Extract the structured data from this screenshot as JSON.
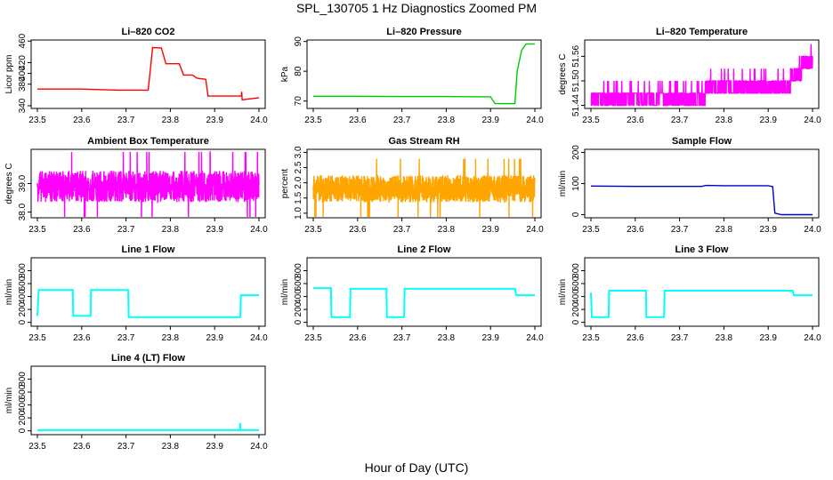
{
  "figure": {
    "title": "SPL_130705  1 Hz Diagnostics Zoomed PM",
    "xlabel": "Hour of Day (UTC)"
  },
  "chart_data": [
    {
      "type": "line",
      "title": "Li–820 CO2",
      "ylabel": "Licor ppm",
      "color": "#ff0000",
      "xlim": [
        23.5,
        24.0
      ],
      "xticks": [
        23.5,
        23.6,
        23.7,
        23.8,
        23.9,
        24.0
      ],
      "xtick_labels": [
        "23.5",
        "23.6",
        "23.7",
        "23.8",
        "23.9",
        "24.0"
      ],
      "ylim": [
        335,
        462
      ],
      "yticks": [
        340,
        380,
        400,
        420,
        460
      ],
      "ytick_labels": [
        "340",
        "380",
        "400",
        "420",
        "460"
      ],
      "series": [
        {
          "x": [
            23.5,
            23.6,
            23.68,
            23.75,
            23.76,
            23.78,
            23.79,
            23.82,
            23.83,
            23.85,
            23.86,
            23.88,
            23.885,
            23.96,
            23.961,
            23.962,
            24.0
          ],
          "y": [
            371,
            371,
            369,
            369,
            448,
            447,
            418,
            418,
            397,
            397,
            391,
            389,
            358,
            358,
            366,
            351,
            355
          ]
        }
      ]
    },
    {
      "type": "line",
      "title": "Li–820 Pressure",
      "ylabel": "kPa",
      "color": "#00cc00",
      "xlim": [
        23.5,
        24.0
      ],
      "xticks": [
        23.5,
        23.6,
        23.7,
        23.8,
        23.9,
        24.0
      ],
      "xtick_labels": [
        "23.5",
        "23.6",
        "23.7",
        "23.8",
        "23.9",
        "24.0"
      ],
      "ylim": [
        67.5,
        90.5
      ],
      "yticks": [
        70,
        80,
        90
      ],
      "ytick_labels": [
        "70",
        "80",
        "90"
      ],
      "series": [
        {
          "x": [
            23.5,
            23.6,
            23.7,
            23.8,
            23.9,
            23.91,
            23.955,
            23.96,
            23.97,
            23.98,
            24.0
          ],
          "y": [
            71.6,
            71.6,
            71.5,
            71.5,
            71.4,
            69.1,
            69.1,
            80,
            87,
            89.2,
            89.2
          ]
        }
      ]
    },
    {
      "type": "line",
      "title": "Li–820 Temperature",
      "ylabel": "degrees C",
      "color": "#ff00ff",
      "xlim": [
        23.5,
        24.0
      ],
      "xticks": [
        23.5,
        23.6,
        23.7,
        23.8,
        23.9,
        24.0
      ],
      "xtick_labels": [
        "23.5",
        "23.6",
        "23.7",
        "23.8",
        "23.9",
        "24.0"
      ],
      "ylim": [
        51.4325,
        51.6
      ],
      "yticks": [
        51.44,
        51.5,
        51.56
      ],
      "ytick_labels": [
        "51.44",
        "51.50",
        "51.56"
      ],
      "series": [
        {
          "x": [
            23.5,
            23.6,
            23.7,
            23.76,
            23.8,
            23.85,
            23.9,
            23.95,
            23.97,
            23.98,
            24.0
          ],
          "y": [
            51.44,
            51.44,
            51.44,
            51.44,
            51.47,
            51.47,
            51.5,
            51.5,
            51.53,
            51.56,
            51.56
          ]
        }
      ]
    },
    {
      "type": "line",
      "title": "Ambient Box Temperature",
      "ylabel": "degrees C",
      "color": "#ff00ff",
      "xlim": [
        23.5,
        24.0
      ],
      "xticks": [
        23.5,
        23.6,
        23.7,
        23.8,
        23.9,
        24.0
      ],
      "xtick_labels": [
        "23.5",
        "23.6",
        "23.7",
        "23.8",
        "23.9",
        "24.0"
      ],
      "ylim": [
        37.8,
        40.2
      ],
      "yticks": [
        38.0,
        39.0
      ],
      "ytick_labels": [
        "38.0",
        "39.0"
      ],
      "series": [
        {
          "x": [
            23.5,
            23.6,
            23.7,
            23.8,
            23.9,
            24.0
          ],
          "y": [
            38.9,
            38.9,
            38.9,
            38.9,
            38.9,
            38.9
          ]
        }
      ]
    },
    {
      "type": "line",
      "title": "Gas Stream RH",
      "ylabel": "percent",
      "color": "#ffa500",
      "xlim": [
        23.5,
        24.0
      ],
      "xticks": [
        23.5,
        23.6,
        23.7,
        23.8,
        23.9,
        24.0
      ],
      "xtick_labels": [
        "23.5",
        "23.6",
        "23.7",
        "23.8",
        "23.9",
        "24.0"
      ],
      "ylim": [
        0.85,
        3.1
      ],
      "yticks": [
        1.0,
        1.5,
        2.0,
        2.5,
        3.0
      ],
      "ytick_labels": [
        "1.0",
        "1.5",
        "2.0",
        "2.5",
        "3.0"
      ],
      "series": [
        {
          "x": [
            23.5,
            23.6,
            23.7,
            23.8,
            23.9,
            24.0
          ],
          "y": [
            1.8,
            1.8,
            1.8,
            1.8,
            1.8,
            1.8
          ]
        }
      ]
    },
    {
      "type": "line",
      "title": "Sample Flow",
      "ylabel": "ml/min",
      "color": "#0000cc",
      "xlim": [
        23.5,
        24.0
      ],
      "xticks": [
        23.5,
        23.6,
        23.7,
        23.8,
        23.9,
        24.0
      ],
      "xtick_labels": [
        "23.5",
        "23.6",
        "23.7",
        "23.8",
        "23.9",
        "24.0"
      ],
      "ylim": [
        -10,
        210
      ],
      "yticks": [
        0,
        100,
        200
      ],
      "ytick_labels": [
        "0",
        "100",
        "200"
      ],
      "series": [
        {
          "x": [
            23.5,
            23.6,
            23.7,
            23.75,
            23.76,
            23.8,
            23.9,
            23.91,
            23.915,
            23.93,
            24.0
          ],
          "y": [
            92,
            91,
            91,
            91,
            94,
            93,
            93,
            90,
            5,
            0,
            0
          ]
        }
      ]
    },
    {
      "type": "line",
      "title": "Line 1 Flow",
      "ylabel": "ml/min",
      "color": "#00ffff",
      "xlim": [
        23.5,
        24.0
      ],
      "xticks": [
        23.5,
        23.6,
        23.7,
        23.8,
        23.9,
        24.0
      ],
      "xtick_labels": [
        "23.5",
        "23.6",
        "23.7",
        "23.8",
        "23.9",
        "24.0"
      ],
      "ylim": [
        -60,
        1000
      ],
      "yticks": [
        0,
        200,
        400,
        600,
        800
      ],
      "ytick_labels": [
        "0",
        "200",
        "400",
        "600",
        "800"
      ],
      "series": [
        {
          "x": [
            23.5,
            23.503,
            23.58,
            23.581,
            23.62,
            23.621,
            23.705,
            23.706,
            23.958,
            23.959,
            24.0
          ],
          "y": [
            100,
            500,
            500,
            100,
            100,
            500,
            500,
            80,
            80,
            420,
            420
          ]
        }
      ]
    },
    {
      "type": "line",
      "title": "Line 2 Flow",
      "ylabel": "ml/min",
      "color": "#00ffff",
      "xlim": [
        23.5,
        24.0
      ],
      "xticks": [
        23.5,
        23.6,
        23.7,
        23.8,
        23.9,
        24.0
      ],
      "xtick_labels": [
        "23.5",
        "23.6",
        "23.7",
        "23.8",
        "23.9",
        "24.0"
      ],
      "ylim": [
        -60,
        1000
      ],
      "yticks": [
        0,
        200,
        400,
        600,
        800
      ],
      "ytick_labels": [
        "0",
        "200",
        "400",
        "600",
        "800"
      ],
      "series": [
        {
          "x": [
            23.5,
            23.54,
            23.541,
            23.583,
            23.584,
            23.665,
            23.666,
            23.705,
            23.706,
            23.955,
            23.958,
            24.0
          ],
          "y": [
            530,
            530,
            80,
            80,
            520,
            520,
            80,
            80,
            520,
            520,
            420,
            420
          ]
        }
      ]
    },
    {
      "type": "line",
      "title": "Line 3 Flow",
      "ylabel": "ml/min",
      "color": "#00ffff",
      "xlim": [
        23.5,
        24.0
      ],
      "xticks": [
        23.5,
        23.6,
        23.7,
        23.8,
        23.9,
        24.0
      ],
      "xtick_labels": [
        "23.5",
        "23.6",
        "23.7",
        "23.8",
        "23.9",
        "24.0"
      ],
      "ylim": [
        -60,
        1000
      ],
      "yticks": [
        0,
        200,
        400,
        600,
        800
      ],
      "ytick_labels": [
        "0",
        "200",
        "400",
        "600",
        "800"
      ],
      "series": [
        {
          "x": [
            23.5,
            23.502,
            23.54,
            23.541,
            23.58,
            23.624,
            23.625,
            23.665,
            23.666,
            23.955,
            23.958,
            24.0
          ],
          "y": [
            460,
            80,
            80,
            490,
            490,
            490,
            80,
            80,
            490,
            490,
            420,
            420
          ]
        }
      ]
    },
    {
      "type": "line",
      "title": "Line 4 (LT) Flow",
      "ylabel": "ml/min",
      "color": "#00ffff",
      "xlim": [
        23.5,
        24.0
      ],
      "xticks": [
        23.5,
        23.6,
        23.7,
        23.8,
        23.9,
        24.0
      ],
      "xtick_labels": [
        "23.5",
        "23.6",
        "23.7",
        "23.8",
        "23.9",
        "24.0"
      ],
      "ylim": [
        -60,
        1000
      ],
      "yticks": [
        0,
        200,
        400,
        600,
        800
      ],
      "ytick_labels": [
        "0",
        "200",
        "400",
        "600",
        "800"
      ],
      "series": [
        {
          "x": [
            23.5,
            23.6,
            23.7,
            23.8,
            23.9,
            23.957,
            23.9575,
            23.958,
            24.0
          ],
          "y": [
            10,
            10,
            10,
            10,
            10,
            10,
            120,
            10,
            10
          ]
        }
      ]
    }
  ]
}
